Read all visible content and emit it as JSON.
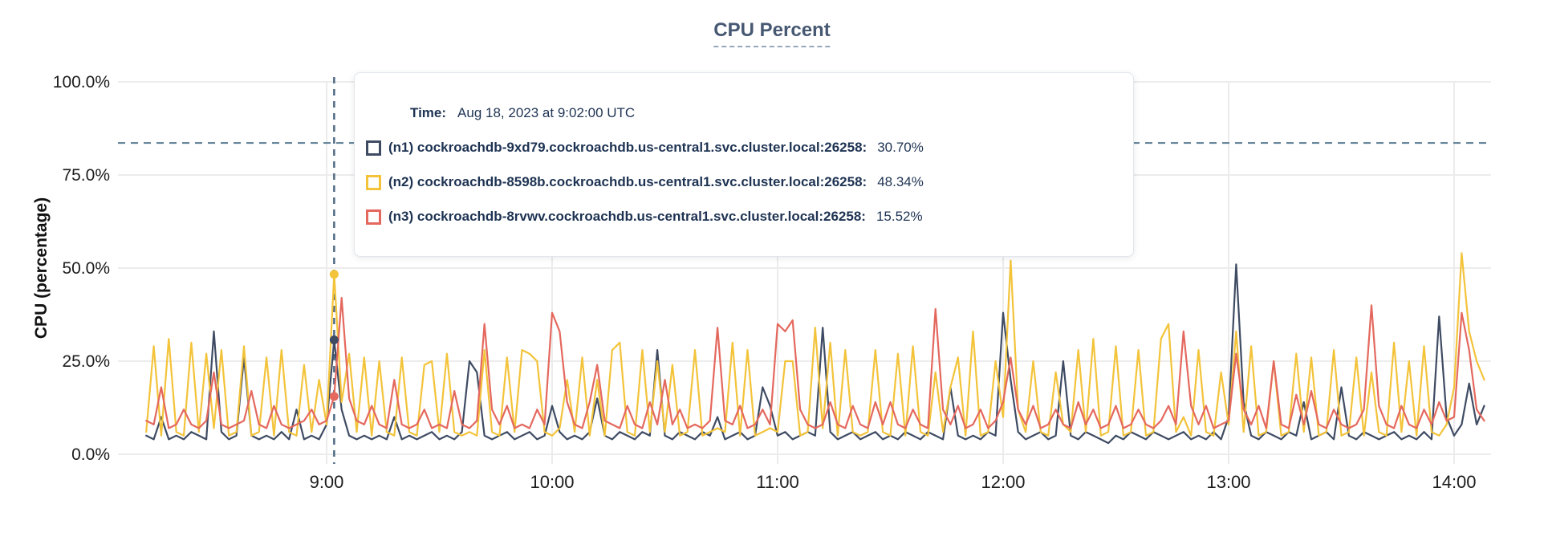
{
  "title": "CPU Percent",
  "y_axis": {
    "label": "CPU (percentage)",
    "ticks": [
      "100.0%",
      "75.0%",
      "50.0%",
      "25.0%",
      "0.0%"
    ]
  },
  "x_axis": {
    "ticks": [
      "9:00",
      "10:00",
      "11:00",
      "12:00",
      "13:00",
      "14:00"
    ]
  },
  "tooltip": {
    "time_label": "Time:",
    "time_value": "Aug 18, 2023 at 9:02:00 UTC",
    "rows": [
      {
        "label": "(n1) cockroachdb-9xd79.cockroachdb.us-central1.svc.cluster.local:26258:",
        "value": "30.70%",
        "color": "#3e4b63"
      },
      {
        "label": "(n2) cockroachdb-8598b.cockroachdb.us-central1.svc.cluster.local:26258:",
        "value": "48.34%",
        "color": "#f3c33a"
      },
      {
        "label": "(n3) cockroachdb-8rvwv.cockroachdb.us-central1.svc.cluster.local:26258:",
        "value": "15.52%",
        "color": "#e4685e"
      }
    ]
  },
  "colors": {
    "grid": "#ececec",
    "threshold_line": "#587b93",
    "hover_line": "#4e6a84",
    "axis_text": "#1c1c1c",
    "title_text": "#475872"
  },
  "chart_data": {
    "type": "line",
    "title": "CPU Percent",
    "xlabel": "",
    "ylabel": "CPU (percentage)",
    "ylim": [
      0,
      100
    ],
    "grid": true,
    "legend_position": "tooltip-overlay",
    "x_time_start_min_of_day": 492,
    "x_step_minutes": 2,
    "x_tick_labels": [
      "9:00",
      "10:00",
      "11:00",
      "12:00",
      "13:00",
      "14:00"
    ],
    "y_tick_values": [
      0,
      25,
      50,
      75,
      100
    ],
    "threshold_pct": 83.6,
    "hover": {
      "min_of_day": 542,
      "index": 25,
      "time": "9:02:00",
      "values": [
        30.7,
        48.34,
        15.52
      ]
    },
    "series": [
      {
        "name": "(n1) cockroachdb-9xd79.cockroachdb.us-central1.svc.cluster.local:26258",
        "color": "#3e4b63",
        "values": [
          5,
          4,
          10,
          4,
          5,
          4,
          6,
          5,
          4,
          33,
          6,
          4,
          5,
          26,
          5,
          4,
          5,
          4,
          6,
          4,
          12,
          4,
          5,
          4,
          8,
          30.7,
          12,
          5,
          4,
          5,
          4,
          5,
          4,
          10,
          4,
          5,
          4,
          5,
          6,
          4,
          5,
          4,
          6,
          25,
          22,
          5,
          4,
          5,
          6,
          4,
          5,
          6,
          4,
          5,
          13,
          6,
          4,
          5,
          4,
          6,
          15,
          5,
          4,
          6,
          5,
          4,
          6,
          5,
          28,
          5,
          4,
          6,
          5,
          4,
          6,
          5,
          10,
          4,
          5,
          6,
          4,
          5,
          18,
          13,
          5,
          6,
          4,
          5,
          6,
          5,
          34,
          6,
          4,
          5,
          6,
          4,
          5,
          6,
          4,
          5,
          4,
          6,
          5,
          4,
          6,
          5,
          4,
          18,
          5,
          4,
          5,
          4,
          6,
          5,
          38,
          20,
          6,
          4,
          5,
          6,
          4,
          5,
          25,
          5,
          4,
          6,
          5,
          4,
          3,
          5,
          4,
          6,
          5,
          4,
          6,
          5,
          4,
          5,
          6,
          4,
          5,
          4,
          6,
          4,
          10,
          51,
          14,
          5,
          4,
          6,
          5,
          4,
          6,
          5,
          14,
          4,
          5,
          6,
          4,
          18,
          5,
          4,
          6,
          5,
          4,
          5,
          6,
          4,
          5,
          4,
          6,
          4,
          37,
          10,
          5,
          8,
          19,
          8,
          13
        ]
      },
      {
        "name": "(n2) cockroachdb-8598b.cockroachdb.us-central1.svc.cluster.local:26258",
        "color": "#f3c33a",
        "values": [
          6,
          29,
          5,
          31,
          6,
          5,
          30,
          6,
          27,
          7,
          28,
          5,
          6,
          29,
          5,
          6,
          26,
          5,
          28,
          6,
          5,
          24,
          6,
          20,
          8,
          48.34,
          14,
          27,
          6,
          26,
          5,
          25,
          6,
          5,
          26,
          6,
          5,
          24,
          25,
          6,
          27,
          6,
          5,
          6,
          5,
          28,
          6,
          5,
          26,
          6,
          28,
          27,
          25,
          6,
          5,
          7,
          20,
          6,
          26,
          5,
          20,
          5,
          28,
          30,
          6,
          5,
          28,
          6,
          25,
          6,
          24,
          5,
          6,
          28,
          5,
          6,
          7,
          6,
          30,
          5,
          28,
          5,
          6,
          7,
          6,
          25,
          25,
          5,
          6,
          34,
          7,
          30,
          5,
          28,
          6,
          5,
          6,
          28,
          6,
          5,
          27,
          5,
          29,
          6,
          5,
          22,
          6,
          18,
          26,
          5,
          33,
          5,
          6,
          25,
          10,
          52,
          12,
          6,
          25,
          6,
          5,
          22,
          8,
          6,
          28,
          6,
          31,
          5,
          6,
          29,
          5,
          6,
          28,
          5,
          6,
          31,
          35,
          6,
          10,
          5,
          28,
          6,
          5,
          22,
          8,
          33,
          6,
          29,
          5,
          6,
          25,
          5,
          6,
          27,
          6,
          26,
          5,
          6,
          28,
          5,
          6,
          26,
          5,
          22,
          6,
          5,
          30,
          6,
          25,
          5,
          29,
          6,
          5,
          8,
          18,
          54,
          33,
          25,
          20
        ]
      },
      {
        "name": "(n3) cockroachdb-8rvwv.cockroachdb.us-central1.svc.cluster.local:26258",
        "color": "#e4685e",
        "values": [
          9,
          8,
          18,
          7,
          8,
          12,
          8,
          7,
          9,
          22,
          8,
          7,
          8,
          9,
          17,
          8,
          7,
          13,
          8,
          7,
          8,
          9,
          12,
          8,
          9,
          15.52,
          42,
          15,
          9,
          8,
          13,
          8,
          7,
          20,
          8,
          7,
          8,
          12,
          7,
          8,
          7,
          17,
          8,
          7,
          9,
          35,
          12,
          8,
          13,
          7,
          8,
          7,
          12,
          8,
          38,
          33,
          14,
          8,
          7,
          14,
          24,
          9,
          8,
          7,
          13,
          8,
          7,
          14,
          8,
          20,
          8,
          12,
          7,
          8,
          7,
          9,
          34,
          9,
          8,
          13,
          7,
          8,
          12,
          8,
          35,
          33,
          36,
          12,
          8,
          7,
          8,
          14,
          8,
          7,
          13,
          8,
          7,
          14,
          8,
          14,
          8,
          7,
          12,
          8,
          7,
          39,
          12,
          8,
          13,
          7,
          8,
          12,
          7,
          9,
          14,
          26,
          12,
          8,
          13,
          7,
          8,
          12,
          8,
          7,
          14,
          8,
          12,
          7,
          8,
          13,
          7,
          8,
          12,
          8,
          7,
          9,
          13,
          8,
          33,
          13,
          8,
          13,
          7,
          8,
          9,
          27,
          12,
          8,
          13,
          7,
          25,
          8,
          7,
          16,
          8,
          17,
          8,
          7,
          12,
          8,
          7,
          8,
          12,
          40,
          13,
          8,
          7,
          13,
          8,
          7,
          12,
          8,
          14,
          9,
          10,
          38,
          28,
          12,
          9
        ]
      }
    ]
  }
}
